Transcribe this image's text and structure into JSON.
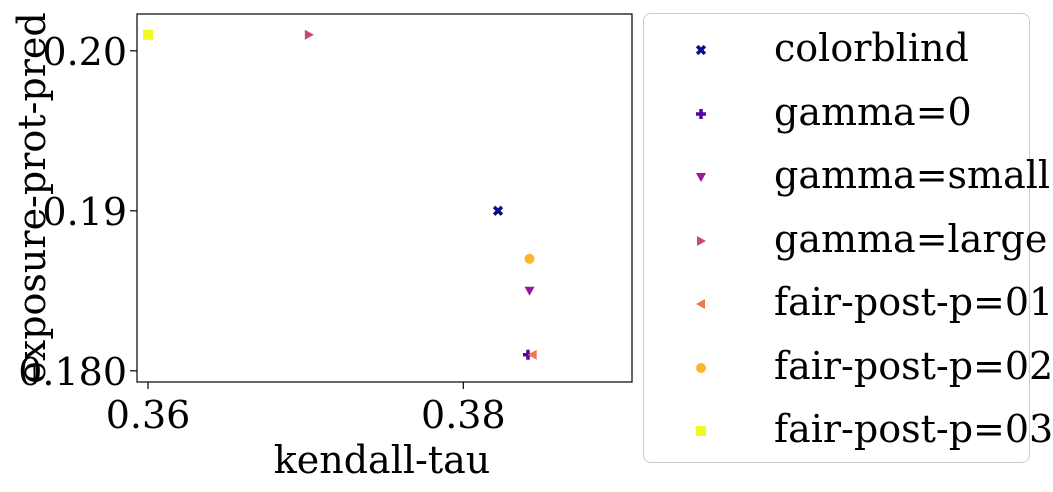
{
  "chart_data": {
    "type": "scatter",
    "xlabel": "kendall-tau",
    "ylabel": "exposure-prot-pred",
    "xlim": [
      0.3593,
      0.3907
    ],
    "ylim": [
      0.1793,
      0.2023
    ],
    "xticks": [
      0.36,
      0.38
    ],
    "xtick_labels": [
      "0.36",
      "0.38"
    ],
    "yticks": [
      0.18,
      0.19,
      0.2
    ],
    "ytick_labels": [
      "0.180",
      "0.19",
      "0.20"
    ],
    "grid": false,
    "legend_position": "outside-right",
    "series": [
      {
        "name": "colorblind",
        "marker": "x-filled",
        "color": "#0d0887",
        "points": [
          {
            "x": 0.3822,
            "y": 0.19
          }
        ]
      },
      {
        "name": "gamma=0",
        "marker": "plus-filled",
        "color": "#5c01a6",
        "points": [
          {
            "x": 0.3841,
            "y": 0.181
          }
        ]
      },
      {
        "name": "gamma=small",
        "marker": "triangle-down",
        "color": "#9c179e",
        "points": [
          {
            "x": 0.3842,
            "y": 0.185
          }
        ]
      },
      {
        "name": "gamma=large",
        "marker": "triangle-right",
        "color": "#cc4778",
        "points": [
          {
            "x": 0.3702,
            "y": 0.201
          }
        ]
      },
      {
        "name": "fair-post-p=01",
        "marker": "triangle-left",
        "color": "#ed7953",
        "points": [
          {
            "x": 0.3844,
            "y": 0.181
          }
        ]
      },
      {
        "name": "fair-post-p=02",
        "marker": "circle",
        "color": "#fdb42f",
        "points": [
          {
            "x": 0.3842,
            "y": 0.187
          }
        ]
      },
      {
        "name": "fair-post-p=03",
        "marker": "square",
        "color": "#f0f921",
        "points": [
          {
            "x": 0.36,
            "y": 0.201
          }
        ]
      }
    ]
  }
}
